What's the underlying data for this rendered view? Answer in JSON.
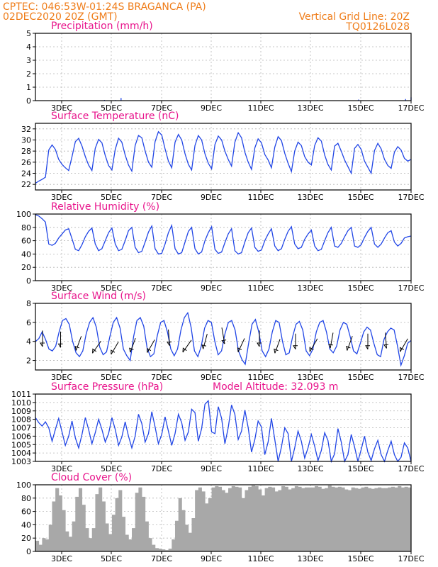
{
  "header": {
    "station": "CPTEC:   046:53W-01:24S   BRAGANCA (PA)",
    "run": "02DEC2020 20Z (GMT)",
    "grid_note": "Vertical Grid Line: 20Z",
    "code": "TQ0126L028"
  },
  "colors": {
    "header": "#ef7d1a",
    "panel_title": "#e8158c",
    "series": "#2146e6",
    "cloud_fill": "#a8a8a8",
    "wind_arrow": "#000000"
  },
  "chart_data": [
    {
      "id": "precipitation",
      "type": "bar",
      "title": "Precipitation (mm/h)",
      "ylim": [
        0,
        5
      ],
      "yticks": [
        "0",
        "1",
        "2",
        "3",
        "4",
        "5"
      ],
      "xticks": [
        "3DEC",
        "5DEC",
        "7DEC",
        "9DEC",
        "11DEC",
        "13DEC",
        "15DEC",
        "17DEC"
      ],
      "grid": true,
      "series": [
        {
          "values": [
            0,
            0,
            0,
            0,
            0,
            0,
            0,
            0,
            0,
            0,
            0,
            0,
            0,
            0,
            0,
            0,
            0,
            0,
            0,
            0,
            0,
            0,
            0.03,
            0,
            0,
            0.05,
            0,
            0,
            0,
            0.04,
            0,
            0.2,
            0,
            0,
            0,
            0,
            0,
            0,
            0,
            0,
            0,
            0,
            0,
            0,
            0,
            0,
            0,
            0,
            0,
            0,
            0,
            0,
            0,
            0,
            0.03,
            0,
            0,
            0,
            0,
            0,
            0,
            0,
            0,
            0,
            0,
            0,
            0,
            0,
            0,
            0,
            0,
            0,
            0,
            0,
            0,
            0,
            0,
            0,
            0.03,
            0,
            0,
            0,
            0,
            0,
            0,
            0,
            0,
            0,
            0,
            0,
            0,
            0,
            0,
            0,
            0,
            0,
            0,
            0,
            0,
            0,
            0,
            0,
            0.04,
            0,
            0,
            0,
            0,
            0,
            0,
            0,
            0,
            0,
            0,
            0,
            0,
            0,
            0,
            0.08,
            0,
            0,
            0,
            0,
            0,
            0,
            0,
            0,
            0.02,
            0,
            0,
            0,
            0,
            0,
            0,
            0.02,
            0.12,
            0,
            0.25
          ]
        }
      ]
    },
    {
      "id": "temperature",
      "type": "line",
      "title": "Surface Temperature (nC)",
      "ylim": [
        21,
        33
      ],
      "yticks": [
        "22",
        "24",
        "26",
        "28",
        "30",
        "32"
      ],
      "xticks": [
        "3DEC",
        "5DEC",
        "7DEC",
        "9DEC",
        "11DEC",
        "13DEC",
        "15DEC",
        "17DEC"
      ],
      "grid": true,
      "series": [
        {
          "values": [
            22.2,
            22.6,
            22.9,
            23.3,
            28.2,
            29.1,
            28.3,
            26.5,
            25.6,
            25.0,
            24.5,
            27.0,
            29.7,
            30.3,
            28.9,
            27.0,
            25.5,
            24.5,
            28.5,
            30.1,
            29.5,
            27.2,
            25.4,
            24.6,
            28.3,
            30.3,
            29.6,
            27.3,
            25.5,
            24.4,
            29.0,
            30.8,
            30.4,
            28.0,
            26.0,
            25.1,
            29.7,
            31.5,
            30.9,
            28.4,
            26.2,
            25.0,
            29.6,
            31.0,
            30.0,
            27.5,
            25.6,
            24.6,
            29.0,
            30.8,
            30.0,
            27.5,
            25.8,
            24.8,
            29.2,
            30.7,
            30.0,
            28.0,
            26.5,
            25.3,
            29.6,
            31.3,
            30.4,
            27.8,
            26.0,
            24.7,
            28.6,
            30.2,
            29.5,
            27.4,
            26.4,
            25.0,
            28.7,
            30.6,
            29.9,
            27.6,
            25.8,
            24.3,
            28.0,
            29.6,
            29.0,
            27.0,
            26.0,
            25.5,
            29.0,
            30.4,
            29.8,
            27.3,
            25.6,
            24.6,
            28.9,
            29.4,
            28.0,
            26.4,
            25.2,
            24.0,
            28.5,
            29.2,
            28.3,
            26.2,
            25.1,
            24.0,
            28.1,
            29.4,
            28.4,
            26.5,
            25.4,
            24.9,
            27.8,
            28.8,
            28.2,
            26.7,
            26.2,
            26.5
          ]
        }
      ]
    },
    {
      "id": "humidity",
      "type": "line",
      "title": "Relative Humidity (%)",
      "ylim": [
        0,
        100
      ],
      "yticks": [
        "0",
        "20",
        "40",
        "60",
        "80",
        "100"
      ],
      "xticks": [
        "3DEC",
        "5DEC",
        "7DEC",
        "9DEC",
        "11DEC",
        "13DEC",
        "15DEC",
        "17DEC"
      ],
      "grid": true,
      "series": [
        {
          "values": [
            99,
            97,
            93,
            88,
            55,
            53,
            56,
            64,
            70,
            76,
            78,
            63,
            47,
            45,
            54,
            66,
            74,
            79,
            55,
            45,
            48,
            60,
            72,
            79,
            55,
            45,
            47,
            60,
            75,
            80,
            50,
            42,
            44,
            58,
            73,
            82,
            48,
            40,
            41,
            55,
            72,
            83,
            48,
            40,
            42,
            58,
            74,
            80,
            48,
            40,
            43,
            60,
            72,
            81,
            47,
            41,
            43,
            57,
            70,
            78,
            45,
            40,
            42,
            58,
            72,
            79,
            50,
            44,
            46,
            60,
            70,
            78,
            52,
            45,
            48,
            62,
            74,
            81,
            55,
            48,
            50,
            62,
            70,
            76,
            52,
            45,
            47,
            60,
            72,
            80,
            52,
            50,
            56,
            66,
            75,
            80,
            52,
            50,
            54,
            65,
            74,
            80,
            55,
            50,
            55,
            64,
            72,
            75,
            58,
            52,
            56,
            64,
            66,
            67
          ]
        }
      ]
    },
    {
      "id": "wind",
      "type": "line",
      "title": "Surface Wind (m/s)",
      "ylim": [
        1,
        8
      ],
      "yticks": [
        "2",
        "4",
        "6",
        "8"
      ],
      "xticks": [
        "3DEC",
        "5DEC",
        "7DEC",
        "9DEC",
        "11DEC",
        "13DEC",
        "15DEC",
        "17DEC"
      ],
      "grid": true,
      "series": [
        {
          "values": [
            4.0,
            4.3,
            5.0,
            4.2,
            3.2,
            3.0,
            3.5,
            5.0,
            6.2,
            6.4,
            5.8,
            4.0,
            2.8,
            2.4,
            3.0,
            4.8,
            6.0,
            6.5,
            5.5,
            3.4,
            2.6,
            2.9,
            4.5,
            6.0,
            6.5,
            5.4,
            3.2,
            2.5,
            2.0,
            4.5,
            6.2,
            6.5,
            5.6,
            3.3,
            2.4,
            2.7,
            4.6,
            6.0,
            6.2,
            5.0,
            3.2,
            2.5,
            3.2,
            5.2,
            6.5,
            7.0,
            5.5,
            3.0,
            2.4,
            3.5,
            5.4,
            6.2,
            6.0,
            4.0,
            2.6,
            3.0,
            4.8,
            6.0,
            6.2,
            5.2,
            3.0,
            2.1,
            1.6,
            3.8,
            5.8,
            6.3,
            5.0,
            3.0,
            2.4,
            3.2,
            5.0,
            6.2,
            6.0,
            4.0,
            2.6,
            2.8,
            4.5,
            5.8,
            6.1,
            5.2,
            3.0,
            2.5,
            3.2,
            5.0,
            6.0,
            6.2,
            5.0,
            3.2,
            2.8,
            3.5,
            5.2,
            6.0,
            5.8,
            4.5,
            3.0,
            2.7,
            3.8,
            5.0,
            5.5,
            5.2,
            3.8,
            2.6,
            2.4,
            4.2,
            5.0,
            5.4,
            5.2,
            3.5,
            1.5,
            2.5,
            3.8,
            4.1
          ]
        }
      ],
      "wind_arrows": [
        {
          "speed": 4.3,
          "from_deg": 90
        },
        {
          "speed": 4.2,
          "from_deg": 90
        },
        {
          "speed": 3.8,
          "from_deg": 70
        },
        {
          "speed": 3.4,
          "from_deg": 55
        },
        {
          "speed": 3.3,
          "from_deg": 60
        },
        {
          "speed": 3.6,
          "from_deg": 70
        },
        {
          "speed": 3.5,
          "from_deg": 60
        },
        {
          "speed": 4.4,
          "from_deg": 95
        },
        {
          "speed": 3.5,
          "from_deg": 55
        },
        {
          "speed": 4.0,
          "from_deg": 75
        },
        {
          "speed": 4.6,
          "from_deg": 100
        },
        {
          "speed": 3.6,
          "from_deg": 65
        },
        {
          "speed": 4.3,
          "from_deg": 90
        },
        {
          "speed": 3.5,
          "from_deg": 70
        },
        {
          "speed": 4.0,
          "from_deg": 90
        },
        {
          "speed": 3.6,
          "from_deg": 60
        },
        {
          "speed": 4.1,
          "from_deg": 80
        },
        {
          "speed": 3.8,
          "from_deg": 70
        },
        {
          "speed": 4.0,
          "from_deg": 90
        },
        {
          "speed": 4.1,
          "from_deg": 95
        },
        {
          "speed": 3.6,
          "from_deg": 60
        }
      ]
    },
    {
      "id": "pressure",
      "type": "line",
      "title": "Surface Pressure (hPa)",
      "annotation": "Model Altitude: 32.093 m",
      "ylim": [
        1003,
        1011
      ],
      "yticks": [
        "1003",
        "1004",
        "1005",
        "1006",
        "1007",
        "1008",
        "1009",
        "1010",
        "1011"
      ],
      "xticks": [
        "3DEC",
        "5DEC",
        "7DEC",
        "9DEC",
        "11DEC",
        "13DEC",
        "15DEC",
        "17DEC"
      ],
      "grid": true,
      "series": [
        {
          "values": [
            1008.2,
            1007.6,
            1007.2,
            1007.7,
            1007.0,
            1005.4,
            1006.8,
            1008.1,
            1006.5,
            1004.9,
            1006.0,
            1007.8,
            1005.8,
            1004.6,
            1006.2,
            1008.2,
            1006.8,
            1005.1,
            1006.4,
            1008.0,
            1006.8,
            1005.3,
            1006.3,
            1008.2,
            1006.8,
            1004.9,
            1005.9,
            1007.7,
            1006.0,
            1004.6,
            1006.0,
            1008.6,
            1007.5,
            1005.3,
            1006.3,
            1008.9,
            1007.1,
            1005.1,
            1006.2,
            1008.3,
            1006.6,
            1004.9,
            1006.3,
            1008.6,
            1007.6,
            1005.5,
            1006.5,
            1009.2,
            1008.8,
            1005.4,
            1006.9,
            1009.8,
            1010.2,
            1006.5,
            1006.3,
            1009.5,
            1008.1,
            1005.1,
            1007.0,
            1009.7,
            1008.6,
            1005.6,
            1006.6,
            1009.1,
            1007.0,
            1004.1,
            1005.6,
            1007.8,
            1007.1,
            1003.8,
            1005.3,
            1008.1,
            1005.6,
            1002.8,
            1004.7,
            1007.0,
            1006.3,
            1003.0,
            1004.6,
            1006.6,
            1005.4,
            1003.4,
            1004.6,
            1006.2,
            1004.8,
            1003.1,
            1004.3,
            1006.4,
            1005.5,
            1002.9,
            1003.9,
            1006.9,
            1005.3,
            1002.8,
            1003.8,
            1006.2,
            1004.7,
            1003.0,
            1004.4,
            1006.0,
            1004.1,
            1003.1,
            1004.5,
            1005.5,
            1003.8,
            1003.0,
            1004.3,
            1005.4,
            1003.8,
            1002.9,
            1003.5,
            1005.2,
            1004.6,
            1003.0
          ]
        }
      ]
    },
    {
      "id": "cloud",
      "type": "area",
      "title": "Cloud Cover (%)",
      "ylim": [
        0,
        100
      ],
      "yticks": [
        "0",
        "20",
        "40",
        "60",
        "80",
        "100"
      ],
      "xticks": [
        "3DEC",
        "5DEC",
        "7DEC",
        "9DEC",
        "11DEC",
        "13DEC",
        "15DEC",
        "17DEC"
      ],
      "grid": true,
      "series": [
        {
          "values": [
            16,
            10,
            20,
            18,
            40,
            75,
            95,
            84,
            62,
            30,
            22,
            45,
            82,
            95,
            70,
            35,
            20,
            35,
            86,
            96,
            75,
            42,
            26,
            55,
            80,
            92,
            52,
            25,
            18,
            35,
            88,
            96,
            82,
            45,
            20,
            10,
            5,
            4,
            3,
            2,
            4,
            18,
            46,
            80,
            62,
            40,
            28,
            50,
            92,
            96,
            90,
            72,
            80,
            96,
            98,
            97,
            92,
            88,
            95,
            98,
            97,
            96,
            80,
            92,
            97,
            99,
            98,
            93,
            84,
            95,
            97,
            96,
            90,
            92,
            98,
            97,
            93,
            95,
            98,
            97,
            95,
            96,
            96,
            96,
            98,
            97,
            94,
            95,
            99,
            97,
            96,
            97,
            96,
            93,
            92,
            96,
            95,
            94,
            96,
            97,
            95,
            94,
            95,
            96,
            95,
            95,
            96,
            97,
            96,
            98,
            96,
            97,
            96
          ]
        }
      ]
    }
  ]
}
